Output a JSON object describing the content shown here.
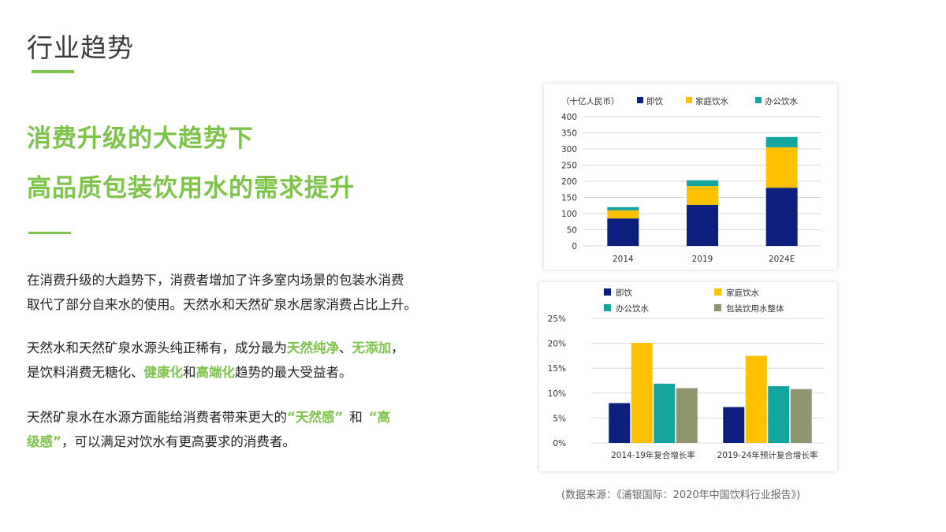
{
  "page": {
    "title": "行业趋势",
    "headline_1": "消费升级的大趋势下",
    "headline_2": "高品质包装饮用水的需求提升",
    "para1": {
      "line1": "在消费升级的大趋势下，消费者增加了许多室内场景的包装水消费",
      "line2": "取代了部分自来水的使用。天然水和天然矿泉水居家消费占比上升。"
    },
    "para2": {
      "t1": "天然水和天然矿泉水源头纯正稀有，成分最为",
      "hl1": "天然纯净",
      "t2": "、",
      "hl2": "无添加",
      "t3": "，",
      "t4": "是饮料消费无糖化、",
      "hl3": "健康化",
      "t5": "和",
      "hl4": "高端化",
      "t6": "趋势的最大受益者。"
    },
    "para3": {
      "t1": "天然矿泉水在水源方面能给消费者带来更大的",
      "hl1": "“天然感”",
      "t2": "和",
      "hl2": "“高",
      "hl3": "级感”",
      "t3": "，可以满足对饮水有更高要求的消费者。"
    },
    "source": "(数据来源：《浦银国际：2020年中国饮料行业报告》)",
    "accent_color": "#7ec34a"
  },
  "chart_data": [
    {
      "type": "bar",
      "stacked": true,
      "unit_label": "（十亿人民币）",
      "categories": [
        "2014",
        "2019",
        "2024E"
      ],
      "series": [
        {
          "name": "即饮",
          "color": "#0c1f7d",
          "values": [
            85,
            127,
            180
          ]
        },
        {
          "name": "家庭饮水",
          "color": "#ffc000",
          "values": [
            25,
            58,
            125
          ]
        },
        {
          "name": "办公饮水",
          "color": "#13a59e",
          "values": [
            10,
            18,
            32
          ]
        }
      ],
      "ylim": [
        0,
        400
      ],
      "yticks": [
        "0",
        "50",
        "100",
        "150",
        "200",
        "250",
        "300",
        "350",
        "400"
      ],
      "grid": true,
      "legend": "top"
    },
    {
      "type": "bar",
      "stacked": false,
      "categories": [
        "2014-19年复合增长率",
        "2019-24年预计复合增长率"
      ],
      "series": [
        {
          "name": "即饮",
          "color": "#0c1f7d",
          "values": [
            0.08,
            0.072
          ]
        },
        {
          "name": "家庭饮水",
          "color": "#ffc000",
          "values": [
            0.201,
            0.175
          ]
        },
        {
          "name": "办公饮水",
          "color": "#13a59e",
          "values": [
            0.119,
            0.114
          ]
        },
        {
          "name": "包装饮用水整体",
          "color": "#8c9470",
          "values": [
            0.11,
            0.108
          ]
        }
      ],
      "ylim": [
        0,
        0.25
      ],
      "yticks": [
        "0%",
        "5%",
        "10%",
        "15%",
        "20%",
        "25%"
      ],
      "grid": true,
      "legend": "top"
    }
  ]
}
